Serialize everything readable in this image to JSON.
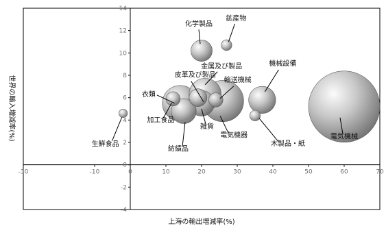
{
  "chart_data": {
    "type": "scatter",
    "xlabel": "上海の輸出増減率(%)",
    "ylabel": "世界の輸入増減率(%)",
    "xlim": [
      -30,
      70
    ],
    "ylim": [
      -4,
      14
    ],
    "xticks": [
      -30,
      -10,
      0,
      10,
      20,
      30,
      40,
      50,
      60,
      70
    ],
    "yticks": [
      -4,
      -2,
      0,
      2,
      4,
      6,
      8,
      10,
      12,
      14
    ],
    "grid": false,
    "points": [
      {
        "label": "化学製品",
        "x": 20,
        "y": 10.2,
        "r": 3
      },
      {
        "label": "鉱産物",
        "x": 27,
        "y": 10.7,
        "r": 1.5
      },
      {
        "label": "機械設備",
        "x": 37,
        "y": 5.8,
        "r": 3.8
      },
      {
        "label": "皮革及び製品",
        "x": 19,
        "y": 6,
        "r": 2.5
      },
      {
        "label": "金属及び製品",
        "x": 21,
        "y": 6.3,
        "r": 4.5
      },
      {
        "label": "輸送機械",
        "x": 24,
        "y": 5.8,
        "r": 2
      },
      {
        "label": "衣類",
        "x": 14,
        "y": 5.5,
        "r": 5
      },
      {
        "label": "加工食品",
        "x": 12,
        "y": 5.9,
        "r": 2
      },
      {
        "label": "生鮮食品",
        "x": -2,
        "y": 4.6,
        "r": 1.2
      },
      {
        "label": "雑貨",
        "x": 20,
        "y": 5.5,
        "r": 3.6
      },
      {
        "label": "紡績品",
        "x": 15,
        "y": 4.8,
        "r": 3.5
      },
      {
        "label": "電気機器",
        "x": 26,
        "y": 5.7,
        "r": 5.8
      },
      {
        "label": "木製品・紙",
        "x": 35,
        "y": 4.4,
        "r": 1.5
      },
      {
        "label": "電気機械",
        "x": 60,
        "y": 5.2,
        "r": 10
      }
    ]
  },
  "colors": {
    "bubble_light": "#fbfbfb",
    "bubble_mid": "#b9b9b9",
    "bubble_dark": "#6a6a6a",
    "frame": "#000000",
    "tick_text": "#6f6f6f"
  }
}
